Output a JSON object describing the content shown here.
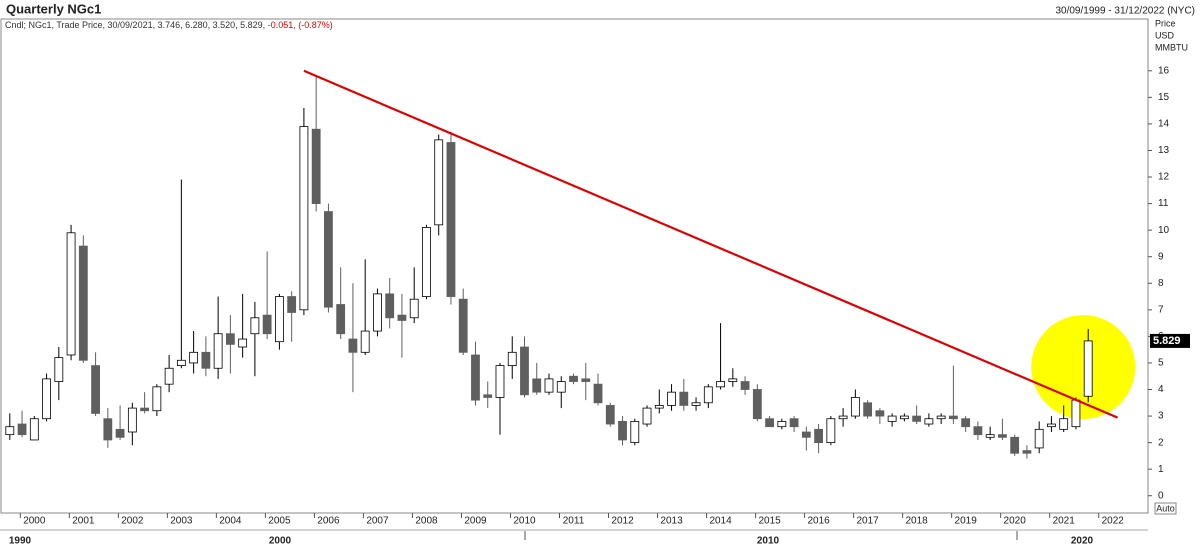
{
  "chart_data": {
    "type": "candlestick",
    "title": "Quarterly NGc1",
    "date_range": "30/09/1999 - 31/12/2022 (NYC)",
    "legend": "Cndl; NGc1, Trade Price, 30/09/2021, 3.746, 6.280, 3.520, 5.829,",
    "legend_change": "-0.051, (-0.87%)",
    "y_label": [
      "Price",
      "USD",
      "MMBTU"
    ],
    "last_close_label": "5.829",
    "auto_button": "Auto",
    "decade_labels": [
      "1990",
      "2000",
      "2010",
      "2020"
    ],
    "up_color": "#ffffff",
    "down_color": "#5f5f5f",
    "edge_color": "#000000",
    "x": [
      1999.5,
      1999.75,
      2000,
      2000.25,
      2000.5,
      2000.75,
      2001,
      2001.25,
      2001.5,
      2001.75,
      2002,
      2002.25,
      2002.5,
      2002.75,
      2003,
      2003.25,
      2003.5,
      2003.75,
      2004,
      2004.25,
      2004.5,
      2004.75,
      2005,
      2005.25,
      2005.5,
      2005.75,
      2006,
      2006.25,
      2006.5,
      2006.75,
      2007,
      2007.25,
      2007.5,
      2007.75,
      2008,
      2008.25,
      2008.5,
      2008.75,
      2009,
      2009.25,
      2009.5,
      2009.75,
      2010,
      2010.25,
      2010.5,
      2010.75,
      2011,
      2011.25,
      2011.5,
      2011.75,
      2012,
      2012.25,
      2012.5,
      2012.75,
      2013,
      2013.25,
      2013.5,
      2013.75,
      2014,
      2014.25,
      2014.5,
      2014.75,
      2015,
      2015.25,
      2015.5,
      2015.75,
      2016,
      2016.25,
      2016.5,
      2016.75,
      2017,
      2017.25,
      2017.5,
      2017.75,
      2018,
      2018.25,
      2018.5,
      2018.75,
      2019,
      2019.25,
      2019.5,
      2019.75,
      2020,
      2020.25,
      2020.5,
      2020.75,
      2021,
      2021.25,
      2021.5
    ],
    "open": [
      2.3,
      2.7,
      2.1,
      2.9,
      4.3,
      5.3,
      9.4,
      4.9,
      2.9,
      2.5,
      2.4,
      3.3,
      3.2,
      4.2,
      4.9,
      5.0,
      5.4,
      4.8,
      6.1,
      5.6,
      6.1,
      6.8,
      5.8,
      7.5,
      7.0,
      13.8,
      10.7,
      7.2,
      5.9,
      5.4,
      6.2,
      7.6,
      6.8,
      6.7,
      7.5,
      10.2,
      13.3,
      7.4,
      5.3,
      3.8,
      3.7,
      4.9,
      5.6,
      4.4,
      3.9,
      3.9,
      4.5,
      4.4,
      4.2,
      3.4,
      2.8,
      2.0,
      2.7,
      3.3,
      3.4,
      3.9,
      3.4,
      3.5,
      4.1,
      4.3,
      4.3,
      4.0,
      2.9,
      2.6,
      2.9,
      2.4,
      2.5,
      2.0,
      2.9,
      3.0,
      3.5,
      3.2,
      2.8,
      2.9,
      3.0,
      2.7,
      2.9,
      3.0,
      2.9,
      2.6,
      2.2,
      2.3,
      2.2,
      1.7,
      1.8,
      2.6,
      2.5,
      2.6,
      3.746
    ],
    "high": [
      3.1,
      3.2,
      3.0,
      4.6,
      5.6,
      10.2,
      9.8,
      5.4,
      3.3,
      3.4,
      3.5,
      3.9,
      4.2,
      5.3,
      11.9,
      6.2,
      6.0,
      7.5,
      6.8,
      7.6,
      7.3,
      9.2,
      7.6,
      7.7,
      14.6,
      15.8,
      11.0,
      8.6,
      8.0,
      8.9,
      7.8,
      8.2,
      7.6,
      8.6,
      10.2,
      13.6,
      13.7,
      7.8,
      5.8,
      4.3,
      5.0,
      6.0,
      6.0,
      5.0,
      4.6,
      4.5,
      4.6,
      5.0,
      4.6,
      3.5,
      3.0,
      2.9,
      3.4,
      4.0,
      4.2,
      4.4,
      3.7,
      4.2,
      6.5,
      4.8,
      4.5,
      4.2,
      3.0,
      2.9,
      3.0,
      2.6,
      2.7,
      3.0,
      3.3,
      4.0,
      3.6,
      3.3,
      3.1,
      3.1,
      3.4,
      3.1,
      3.1,
      4.9,
      3.0,
      2.8,
      2.6,
      2.9,
      2.3,
      1.9,
      2.8,
      3.0,
      3.4,
      3.7,
      6.28
    ],
    "low": [
      2.1,
      2.2,
      2.1,
      2.8,
      3.6,
      5.1,
      5.0,
      3.0,
      1.8,
      2.1,
      1.9,
      3.1,
      3.0,
      3.9,
      4.8,
      4.6,
      4.5,
      4.4,
      4.6,
      5.2,
      4.5,
      5.9,
      5.5,
      5.8,
      6.8,
      10.7,
      6.9,
      5.9,
      3.9,
      5.3,
      6.0,
      6.3,
      5.2,
      6.5,
      7.4,
      9.8,
      7.2,
      5.3,
      3.4,
      3.3,
      2.3,
      4.4,
      3.7,
      3.8,
      3.8,
      3.3,
      4.2,
      3.6,
      3.4,
      2.6,
      1.9,
      1.9,
      2.6,
      3.1,
      3.2,
      3.2,
      3.2,
      3.3,
      4.0,
      4.1,
      3.8,
      2.8,
      2.6,
      2.5,
      2.4,
      1.7,
      1.6,
      1.9,
      2.6,
      2.9,
      2.9,
      2.7,
      2.6,
      2.8,
      2.7,
      2.6,
      2.7,
      2.7,
      2.4,
      2.1,
      2.1,
      2.1,
      1.5,
      1.4,
      1.6,
      2.4,
      2.4,
      2.5,
      3.52
    ],
    "close": [
      2.6,
      2.3,
      2.9,
      4.4,
      5.2,
      9.9,
      5.1,
      3.1,
      2.1,
      2.2,
      3.3,
      3.2,
      4.1,
      4.8,
      5.1,
      5.4,
      4.8,
      6.1,
      5.7,
      5.9,
      6.7,
      6.1,
      7.5,
      6.9,
      13.9,
      11.0,
      7.1,
      6.1,
      5.4,
      6.2,
      7.6,
      6.7,
      6.6,
      7.4,
      10.1,
      13.4,
      7.5,
      5.4,
      3.6,
      3.7,
      4.9,
      5.4,
      3.8,
      3.9,
      4.4,
      4.3,
      4.3,
      4.3,
      3.5,
      2.7,
      2.1,
      2.8,
      3.3,
      3.4,
      3.9,
      3.4,
      3.5,
      4.1,
      4.3,
      4.4,
      4.0,
      2.9,
      2.6,
      2.8,
      2.6,
      2.2,
      2.0,
      2.9,
      3.0,
      3.7,
      3.0,
      3.0,
      3.0,
      3.0,
      2.8,
      2.9,
      3.0,
      2.9,
      2.6,
      2.3,
      2.3,
      2.2,
      1.6,
      1.6,
      2.5,
      2.7,
      2.9,
      3.6,
      5.829
    ],
    "trendline": {
      "color": "#e00000",
      "x": [
        2005.5,
        2022.1
      ],
      "y": [
        16.0,
        2.94
      ]
    },
    "xlim": [
      1999.3,
      2022.72
    ],
    "xticks": [
      2000,
      2001,
      2002,
      2003,
      2004,
      2005,
      2006,
      2007,
      2008,
      2009,
      2010,
      2011,
      2012,
      2013,
      2014,
      2015,
      2016,
      2017,
      2018,
      2019,
      2020,
      2021,
      2022
    ],
    "ylim": [
      -0.65,
      17.95
    ],
    "yticks": [
      0,
      1,
      2,
      3,
      4,
      5,
      6,
      7,
      8,
      9,
      10,
      11,
      12,
      13,
      14,
      15,
      16
    ],
    "highlight_color": "#ffff00"
  }
}
